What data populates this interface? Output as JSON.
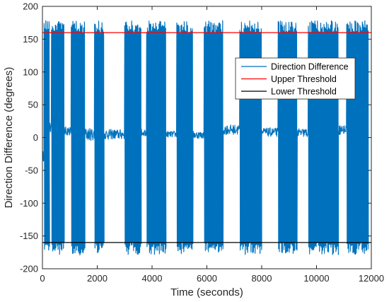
{
  "chart_data": {
    "type": "line",
    "title": "",
    "xlabel": "Time (seconds)",
    "ylabel": "Direction Difference (degrees)",
    "xlim": [
      0,
      12000
    ],
    "ylim": [
      -200,
      200
    ],
    "xticks": [
      0,
      2000,
      4000,
      6000,
      8000,
      10000,
      12000
    ],
    "yticks": [
      -200,
      -150,
      -100,
      -50,
      0,
      50,
      100,
      150,
      200
    ],
    "grid": false,
    "legend_position": "upper-right",
    "sampling_interval_s": 10,
    "series": [
      {
        "name": "Direction Difference",
        "color": "#0072BD",
        "segments": [
          {
            "t": [
              0,
              60
            ],
            "mode": "noise",
            "level": -28,
            "amp": 8
          },
          {
            "t": [
              60,
              250
            ],
            "mode": "osc",
            "period": 30
          },
          {
            "t": [
              250,
              330
            ],
            "mode": "noise",
            "level": 15,
            "amp": 8
          },
          {
            "t": [
              330,
              800
            ],
            "mode": "osc",
            "period": 28
          },
          {
            "t": [
              800,
              1050
            ],
            "mode": "noise",
            "level": 10,
            "amp": 7
          },
          {
            "t": [
              1050,
              1550
            ],
            "mode": "osc",
            "period": 30
          },
          {
            "t": [
              1550,
              1900
            ],
            "mode": "noise",
            "level": 5,
            "amp": 10
          },
          {
            "t": [
              1900,
              2250
            ],
            "mode": "osc",
            "period": 30
          },
          {
            "t": [
              2250,
              3000
            ],
            "mode": "noise",
            "level": 5,
            "amp": 8
          },
          {
            "t": [
              3000,
              3600
            ],
            "mode": "osc",
            "period": 28
          },
          {
            "t": [
              3600,
              3800
            ],
            "mode": "noise",
            "level": 8,
            "amp": 6
          },
          {
            "t": [
              3800,
              4500
            ],
            "mode": "osc",
            "period": 30
          },
          {
            "t": [
              4500,
              4900
            ],
            "mode": "noise",
            "level": 5,
            "amp": 5
          },
          {
            "t": [
              4900,
              5500
            ],
            "mode": "osc",
            "period": 30
          },
          {
            "t": [
              5500,
              5900
            ],
            "mode": "noise",
            "level": 4,
            "amp": 6
          },
          {
            "t": [
              5900,
              6600
            ],
            "mode": "osc",
            "period": 28
          },
          {
            "t": [
              6600,
              7200
            ],
            "mode": "noise",
            "level": 12,
            "amp": 8
          },
          {
            "t": [
              7200,
              8000
            ],
            "mode": "osc",
            "period": 30
          },
          {
            "t": [
              8000,
              8600
            ],
            "mode": "noise",
            "level": 8,
            "amp": 7
          },
          {
            "t": [
              8600,
              9300
            ],
            "mode": "osc",
            "period": 28
          },
          {
            "t": [
              9300,
              9700
            ],
            "mode": "noise",
            "level": 7,
            "amp": 7
          },
          {
            "t": [
              9700,
              10800
            ],
            "mode": "osc",
            "period": 30
          },
          {
            "t": [
              10800,
              11100
            ],
            "mode": "noise",
            "level": 12,
            "amp": 8
          },
          {
            "t": [
              11100,
              11900
            ],
            "mode": "osc",
            "period": 30
          }
        ]
      },
      {
        "name": "Upper Threshold",
        "color": "#FF0000",
        "x": [
          0,
          12000
        ],
        "y": [
          160,
          160
        ]
      },
      {
        "name": "Lower Threshold",
        "color": "#000000",
        "x": [
          0,
          12000
        ],
        "y": [
          -160,
          -160
        ]
      }
    ]
  }
}
